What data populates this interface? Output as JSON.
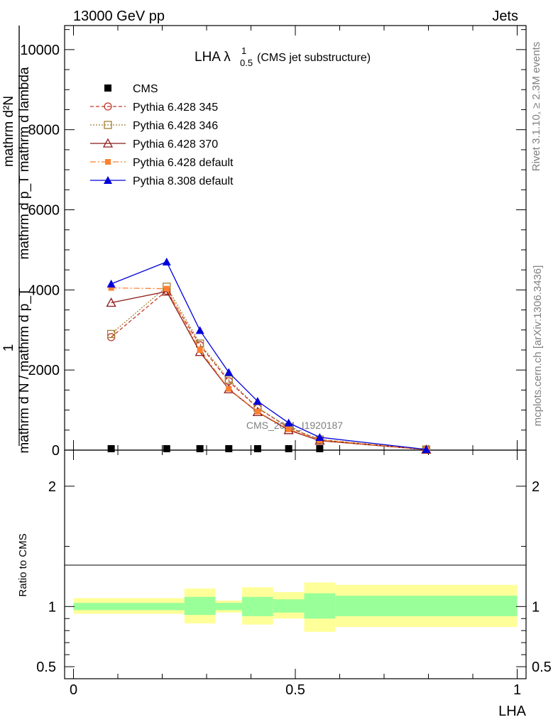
{
  "header": {
    "left_title": "13000 GeV pp",
    "right_title": "Jets"
  },
  "side_labels": {
    "rivet": "Rivet 3.1.10, ≥ 2.3M events",
    "mcplots": "mcplots.cern.ch [arXiv:1306.3436]"
  },
  "watermark": "CMS_2021_I1920187",
  "plot_title": {
    "main": "LHA λ",
    "superscript": "1",
    "subscript": "0.5",
    "suffix": " (CMS jet substructure)"
  },
  "ylabel": {
    "numer": "1",
    "denom": "mathrm d N / mathrm d p_T",
    "right_top": "mathrm d²N",
    "right_bottom": "mathrm d p_T mathrm d lambda"
  },
  "ratio_ylabel": "Ratio to CMS",
  "colors": {
    "green_band": "#99ff99",
    "yellow_band": "#ffff99",
    "pythia_345": "#c0392b",
    "pythia_346": "#a08030",
    "pythia_370": "#8b1a1a",
    "pythia_default_6": "#ff8030",
    "pythia_8": "#0000dd"
  },
  "chart_data": {
    "type": "line",
    "xlabel": "LHA",
    "main": {
      "ylim": [
        0,
        10600
      ],
      "yticks": [
        0,
        2000,
        4000,
        6000,
        8000,
        10000
      ],
      "ytick_labels": [
        "0",
        "2000",
        "4000",
        "6000",
        "8000",
        "10000"
      ],
      "legend_position": "top-left",
      "series": [
        {
          "name": "CMS",
          "style": "data",
          "x": [
            0.085,
            0.21,
            0.285,
            0.35,
            0.415,
            0.485,
            0.555
          ],
          "y": [
            8,
            8,
            8,
            8,
            8,
            8,
            8
          ]
        },
        {
          "name": "Pythia 6.428 345",
          "style": "p345",
          "x": [
            0.085,
            0.21,
            0.285,
            0.35,
            0.415,
            0.485,
            0.555,
            0.795
          ],
          "y": [
            2820,
            3980,
            2620,
            1720,
            1050,
            560,
            260,
            15
          ]
        },
        {
          "name": "Pythia 6.428 346",
          "style": "p346",
          "x": [
            0.085,
            0.21,
            0.285,
            0.35,
            0.415,
            0.485,
            0.555,
            0.795
          ],
          "y": [
            2900,
            4080,
            2660,
            1760,
            1060,
            570,
            265,
            15
          ]
        },
        {
          "name": "Pythia 6.428 370",
          "style": "p370",
          "x": [
            0.085,
            0.21,
            0.285,
            0.35,
            0.415,
            0.485,
            0.555,
            0.795
          ],
          "y": [
            3680,
            3960,
            2450,
            1520,
            950,
            500,
            235,
            12
          ]
        },
        {
          "name": "Pythia 6.428 default",
          "style": "pdef6",
          "x": [
            0.085,
            0.21,
            0.285,
            0.35,
            0.415,
            0.485,
            0.555,
            0.795
          ],
          "y": [
            4050,
            4030,
            2500,
            1530,
            960,
            520,
            250,
            12
          ]
        },
        {
          "name": "Pythia 8.308 default",
          "style": "p8",
          "x": [
            0.085,
            0.21,
            0.285,
            0.35,
            0.415,
            0.485,
            0.555,
            0.795
          ],
          "y": [
            4150,
            4700,
            2990,
            1940,
            1220,
            680,
            320,
            18
          ]
        }
      ]
    },
    "ratio": {
      "ylim": [
        0.4,
        2.3
      ],
      "yticks": [
        0.5,
        1,
        2
      ],
      "ytick_labels": [
        "0.5",
        "1",
        "2"
      ],
      "xlim": [
        -0.02,
        1.02
      ],
      "xticks": [
        0,
        0.5,
        1
      ],
      "xtick_labels": [
        "0",
        "0.5",
        "1"
      ],
      "bins": [
        {
          "x0": 0.0,
          "x1": 0.25,
          "green": [
            0.97,
            1.03
          ],
          "yellow": [
            0.94,
            1.07
          ]
        },
        {
          "x0": 0.25,
          "x1": 0.32,
          "green": [
            0.93,
            1.08
          ],
          "yellow": [
            0.86,
            1.15
          ]
        },
        {
          "x0": 0.32,
          "x1": 0.38,
          "green": [
            0.97,
            1.03
          ],
          "yellow": [
            0.95,
            1.05
          ]
        },
        {
          "x0": 0.38,
          "x1": 0.45,
          "green": [
            0.92,
            1.08
          ],
          "yellow": [
            0.85,
            1.16
          ]
        },
        {
          "x0": 0.45,
          "x1": 0.52,
          "green": [
            0.95,
            1.06
          ],
          "yellow": [
            0.9,
            1.12
          ]
        },
        {
          "x0": 0.52,
          "x1": 0.59,
          "green": [
            0.9,
            1.11
          ],
          "yellow": [
            0.79,
            1.2
          ]
        },
        {
          "x0": 0.59,
          "x1": 1.0,
          "green": [
            0.92,
            1.09
          ],
          "yellow": [
            0.83,
            1.18
          ]
        }
      ]
    }
  }
}
